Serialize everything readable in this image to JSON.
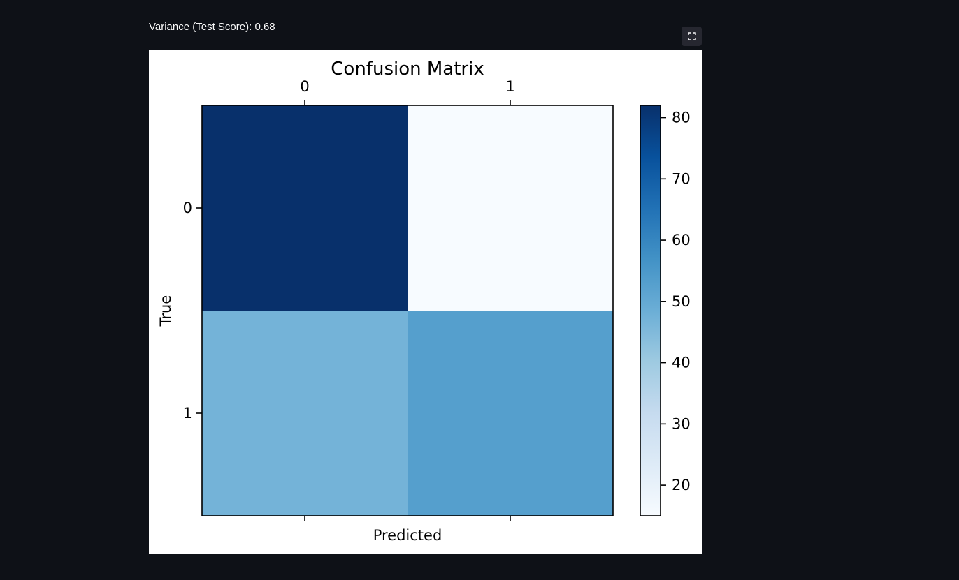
{
  "header": {
    "metric_text": "Variance (Test Score): 0.68"
  },
  "toolbar": {
    "fullscreen_icon": "fullscreen-expand-icon"
  },
  "colors": {
    "background": "#0e1117",
    "button_bg": "#262730",
    "text": "#fafafa",
    "colormap": "Blues"
  },
  "chart_data": {
    "type": "heatmap",
    "title": "Confusion Matrix",
    "xlabel": "Predicted",
    "ylabel": "True",
    "x_categories": [
      "0",
      "1"
    ],
    "y_categories": [
      "0",
      "1"
    ],
    "values": [
      [
        82,
        15
      ],
      [
        47,
        53
      ]
    ],
    "colorbar": {
      "min": 15,
      "max": 82,
      "ticks": [
        20,
        30,
        40,
        50,
        60,
        70,
        80
      ]
    },
    "grid": false
  }
}
